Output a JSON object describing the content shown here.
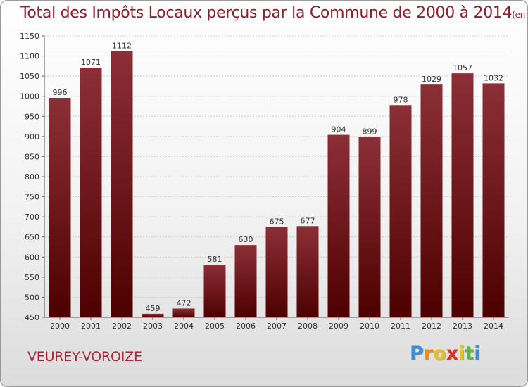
{
  "title": {
    "main": "Total des Impôts Locaux perçus par la Commune de 2000 à 2014",
    "unit": "(en milliers d'€)"
  },
  "commune": "VEUREY-VOROIZE",
  "logo": {
    "letters": [
      "P",
      "r",
      "o",
      "x",
      "i",
      "t",
      "i"
    ],
    "colors": [
      "#3b8fd6",
      "#f08a1c",
      "#e8c21c",
      "#d9342b",
      "#e8c21c",
      "#5bb83a",
      "#3b8fd6"
    ]
  },
  "colors": {
    "bar_top": "#8c2f37",
    "bar_bottom": "#4d0000",
    "title": "#8e1f2c",
    "grid": "#cfcfcf"
  },
  "chart_data": {
    "type": "bar",
    "categories": [
      "2000",
      "2001",
      "2002",
      "2003",
      "2004",
      "2005",
      "2006",
      "2007",
      "2008",
      "2009",
      "2010",
      "2011",
      "2012",
      "2013",
      "2014"
    ],
    "values": [
      996,
      1071,
      1112,
      459,
      472,
      581,
      630,
      675,
      677,
      904,
      899,
      978,
      1029,
      1057,
      1032
    ],
    "ylim": [
      450,
      1150
    ],
    "yticks": [
      450,
      500,
      550,
      600,
      650,
      700,
      750,
      800,
      850,
      900,
      950,
      1000,
      1050,
      1100,
      1150
    ],
    "grid": true
  }
}
